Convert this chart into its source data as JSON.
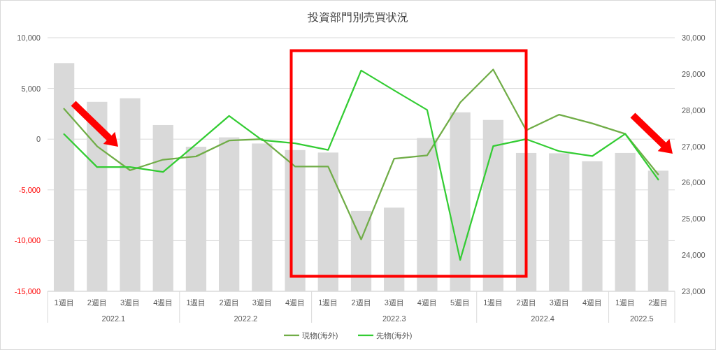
{
  "chart_data": {
    "type": "bar",
    "title": "投資部門別売買状況",
    "categories": [
      "1週目",
      "2週目",
      "3週目",
      "4週目",
      "1週目",
      "2週目",
      "3週目",
      "4週目",
      "1週目",
      "2週目",
      "3週目",
      "4週目",
      "5週目",
      "1週目",
      "2週目",
      "3週目",
      "4週目",
      "1週目",
      "2週目"
    ],
    "series": [
      {
        "axis": "y2",
        "color": "#d9d9d9",
        "values": [
          29300,
          28230,
          28330,
          27590,
          26990,
          27250,
          27080,
          26900,
          26830,
          25220,
          25310,
          27230,
          27940,
          27730,
          26820,
          26810,
          26590,
          26820,
          26330
        ]
      },
      {
        "type": "line",
        "name": "現物(海外)",
        "color": "#70ad47",
        "values": [
          3000,
          -700,
          -3070,
          -2020,
          -1700,
          -140,
          0,
          -2700,
          -2700,
          -9890,
          -1920,
          -1600,
          3610,
          6870,
          870,
          2420,
          1550,
          520,
          -3480
        ]
      },
      {
        "type": "line",
        "name": "先物(海外)",
        "color": "#33cc33",
        "values": [
          500,
          -2750,
          -2750,
          -3230,
          -500,
          2290,
          -100,
          -410,
          -1060,
          6770,
          4810,
          2880,
          -11910,
          -690,
          0,
          -1190,
          -1670,
          520,
          -3980
        ]
      }
    ],
    "ylim": [
      -15000,
      10000
    ],
    "yticks": [
      {
        "value": -15000,
        "label": "-15,000"
      },
      {
        "value": -10000,
        "label": "-10,000"
      },
      {
        "value": -5000,
        "label": "-5,000"
      },
      {
        "value": 0,
        "label": "0"
      },
      {
        "value": 5000,
        "label": "5,000"
      },
      {
        "value": 10000,
        "label": "10,000"
      }
    ],
    "y2lim": [
      23000,
      30000
    ],
    "y2ticks": [
      {
        "value": 23000,
        "label": "23,000"
      },
      {
        "value": 24000,
        "label": "24,000"
      },
      {
        "value": 25000,
        "label": "25,000"
      },
      {
        "value": 26000,
        "label": "26,000"
      },
      {
        "value": 27000,
        "label": "27,000"
      },
      {
        "value": 28000,
        "label": "28,000"
      },
      {
        "value": 29000,
        "label": "29,000"
      },
      {
        "value": 30000,
        "label": "30,000"
      }
    ],
    "annotations": [
      "2022.1",
      "2022.2",
      "2022.3",
      "2022.4",
      "2022.5"
    ],
    "grid": "y",
    "legend": "bottom",
    "marker": "none",
    "line_style": "solid"
  }
}
